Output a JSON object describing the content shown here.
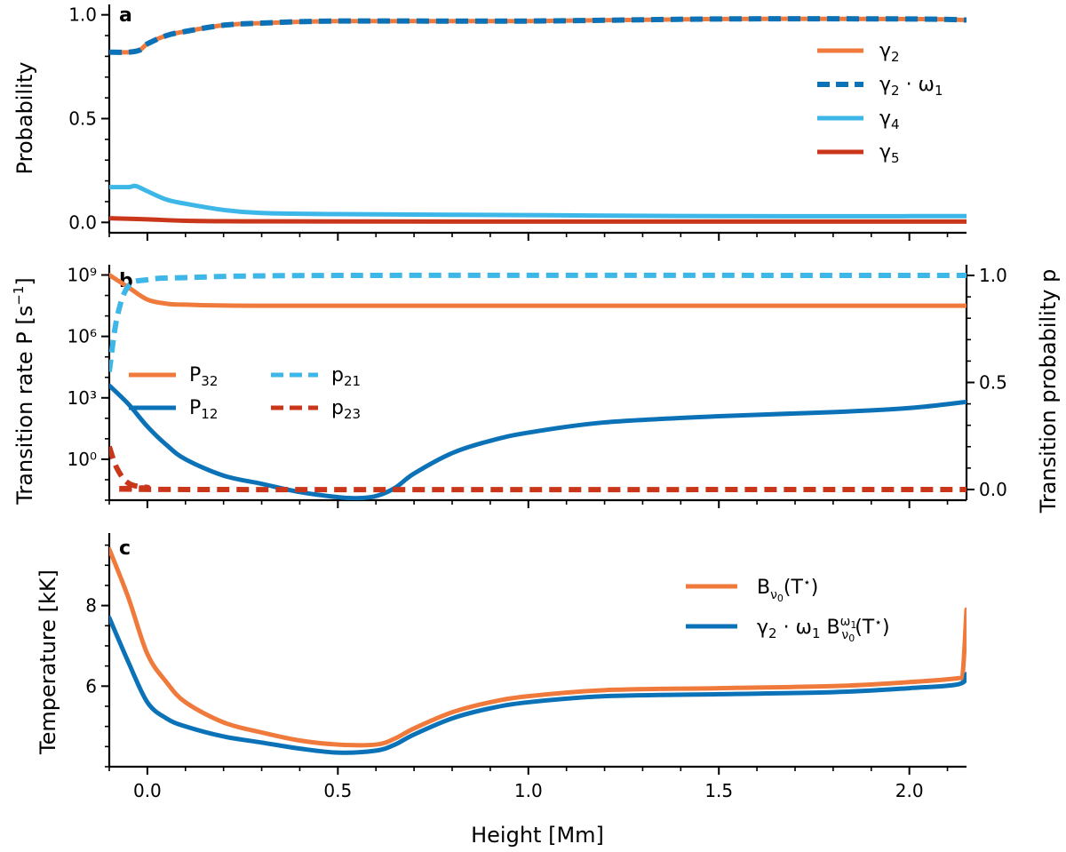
{
  "figure": {
    "xlabel": "Height [Mm]",
    "xlim": [
      -0.1,
      2.15
    ],
    "xticks": [
      0.0,
      0.5,
      1.0,
      1.5,
      2.0
    ],
    "xtick_labels": [
      "0.0",
      "0.5",
      "1.0",
      "1.5",
      "2.0"
    ]
  },
  "colors": {
    "orange": "#ef7a3c",
    "blue": "#0b72b8",
    "light_blue": "#3db6e8",
    "red": "#c9361a"
  },
  "chart_data": [
    {
      "type": "line",
      "panel": "a",
      "ylabel": "Probability",
      "ylim": [
        -0.05,
        1.05
      ],
      "yticks": [
        0.0,
        0.5,
        1.0
      ],
      "ytick_labels": [
        "0.0",
        "0.5",
        "1.0"
      ],
      "legend_position": "top-right",
      "series": [
        {
          "name": "γ2",
          "color": "#ef7a3c",
          "dash": false,
          "points": [
            [
              -0.1,
              0.82
            ],
            [
              -0.05,
              0.82
            ],
            [
              -0.02,
              0.83
            ],
            [
              0.0,
              0.86
            ],
            [
              0.05,
              0.9
            ],
            [
              0.1,
              0.92
            ],
            [
              0.2,
              0.95
            ],
            [
              0.3,
              0.96
            ],
            [
              0.5,
              0.97
            ],
            [
              1.0,
              0.97
            ],
            [
              1.5,
              0.98
            ],
            [
              2.0,
              0.98
            ],
            [
              2.15,
              0.975
            ]
          ]
        },
        {
          "name": "γ2 · ω1",
          "color": "#0b72b8",
          "dash": true,
          "points": [
            [
              -0.1,
              0.82
            ],
            [
              -0.05,
              0.82
            ],
            [
              -0.02,
              0.83
            ],
            [
              0.0,
              0.86
            ],
            [
              0.05,
              0.9
            ],
            [
              0.1,
              0.92
            ],
            [
              0.2,
              0.95
            ],
            [
              0.3,
              0.96
            ],
            [
              0.5,
              0.97
            ],
            [
              1.0,
              0.97
            ],
            [
              1.5,
              0.98
            ],
            [
              2.0,
              0.98
            ],
            [
              2.15,
              0.975
            ]
          ]
        },
        {
          "name": "γ4",
          "color": "#3db6e8",
          "dash": false,
          "points": [
            [
              -0.1,
              0.17
            ],
            [
              -0.05,
              0.17
            ],
            [
              -0.03,
              0.175
            ],
            [
              0.0,
              0.15
            ],
            [
              0.05,
              0.11
            ],
            [
              0.1,
              0.09
            ],
            [
              0.2,
              0.06
            ],
            [
              0.3,
              0.045
            ],
            [
              0.5,
              0.04
            ],
            [
              1.0,
              0.035
            ],
            [
              1.5,
              0.03
            ],
            [
              2.0,
              0.03
            ],
            [
              2.15,
              0.03
            ]
          ]
        },
        {
          "name": "γ5",
          "color": "#c9361a",
          "dash": false,
          "points": [
            [
              -0.1,
              0.02
            ],
            [
              0.0,
              0.015
            ],
            [
              0.1,
              0.008
            ],
            [
              0.3,
              0.005
            ],
            [
              1.0,
              0.004
            ],
            [
              2.15,
              0.004
            ]
          ]
        }
      ]
    },
    {
      "type": "line",
      "panel": "b",
      "ylabel": "Transition rate P [s⁻¹]",
      "y_scale": "log",
      "ylim_log10": [
        -2,
        9.5
      ],
      "yticks_log10": [
        0,
        3,
        6,
        9
      ],
      "ytick_labels": [
        "10⁰",
        "10³",
        "10⁶",
        "10⁹"
      ],
      "y2label": "Transition probability p",
      "y2lim": [
        -0.05,
        1.05
      ],
      "y2ticks": [
        0.0,
        0.5,
        1.0
      ],
      "y2tick_labels": [
        "0.0",
        "0.5",
        "1.0"
      ],
      "legend_position": "center-left",
      "series": [
        {
          "name": "P32",
          "color": "#ef7a3c",
          "dash": false,
          "axis": "left",
          "points": [
            [
              -0.1,
              9.0
            ],
            [
              -0.05,
              8.4
            ],
            [
              0.0,
              7.8
            ],
            [
              0.05,
              7.6
            ],
            [
              0.1,
              7.55
            ],
            [
              0.3,
              7.5
            ],
            [
              1.0,
              7.5
            ],
            [
              2.15,
              7.5
            ]
          ]
        },
        {
          "name": "P12",
          "color": "#0b72b8",
          "dash": false,
          "axis": "left",
          "points": [
            [
              -0.1,
              3.6
            ],
            [
              -0.05,
              2.7
            ],
            [
              0.0,
              1.6
            ],
            [
              0.05,
              0.7
            ],
            [
              0.1,
              0.0
            ],
            [
              0.2,
              -0.8
            ],
            [
              0.3,
              -1.2
            ],
            [
              0.4,
              -1.6
            ],
            [
              0.5,
              -1.85
            ],
            [
              0.55,
              -1.9
            ],
            [
              0.6,
              -1.8
            ],
            [
              0.65,
              -1.4
            ],
            [
              0.7,
              -0.7
            ],
            [
              0.8,
              0.3
            ],
            [
              0.9,
              0.9
            ],
            [
              1.0,
              1.3
            ],
            [
              1.2,
              1.8
            ],
            [
              1.5,
              2.1
            ],
            [
              1.8,
              2.3
            ],
            [
              2.0,
              2.5
            ],
            [
              2.15,
              2.8
            ]
          ]
        },
        {
          "name": "p21",
          "color": "#3db6e8",
          "dash": true,
          "axis": "right",
          "points": [
            [
              -0.1,
              0.55
            ],
            [
              -0.08,
              0.8
            ],
            [
              -0.05,
              0.95
            ],
            [
              0.0,
              0.98
            ],
            [
              0.1,
              0.99
            ],
            [
              0.5,
              1.0
            ],
            [
              2.15,
              1.0
            ]
          ]
        },
        {
          "name": "p23",
          "color": "#c9361a",
          "dash": true,
          "axis": "right",
          "points": [
            [
              -0.1,
              0.2
            ],
            [
              -0.08,
              0.1
            ],
            [
              -0.05,
              0.03
            ],
            [
              0.0,
              0.01
            ],
            [
              0.1,
              0.0
            ],
            [
              2.15,
              0.0
            ]
          ]
        }
      ]
    },
    {
      "type": "line",
      "panel": "c",
      "ylabel": "Temperature [kK]",
      "ylim": [
        4.0,
        9.8
      ],
      "yticks": [
        6,
        8
      ],
      "ytick_labels": [
        "6",
        "8"
      ],
      "legend_position": "top-right",
      "series": [
        {
          "name": "Bν0(T⋆)",
          "color": "#ef7a3c",
          "dash": false,
          "points": [
            [
              -0.1,
              9.4
            ],
            [
              -0.05,
              8.2
            ],
            [
              0.0,
              6.8
            ],
            [
              0.05,
              6.1
            ],
            [
              0.1,
              5.6
            ],
            [
              0.2,
              5.1
            ],
            [
              0.3,
              4.85
            ],
            [
              0.4,
              4.65
            ],
            [
              0.5,
              4.55
            ],
            [
              0.6,
              4.55
            ],
            [
              0.65,
              4.7
            ],
            [
              0.7,
              4.95
            ],
            [
              0.8,
              5.35
            ],
            [
              0.9,
              5.6
            ],
            [
              1.0,
              5.75
            ],
            [
              1.2,
              5.9
            ],
            [
              1.5,
              5.95
            ],
            [
              1.8,
              6.0
            ],
            [
              2.0,
              6.1
            ],
            [
              2.13,
              6.2
            ],
            [
              2.14,
              6.3
            ],
            [
              2.15,
              7.9
            ]
          ]
        },
        {
          "name": "γ2 · ω1 Bν0ω1(T⋆)",
          "color": "#0b72b8",
          "dash": false,
          "points": [
            [
              -0.1,
              7.7
            ],
            [
              -0.05,
              6.6
            ],
            [
              0.0,
              5.6
            ],
            [
              0.05,
              5.2
            ],
            [
              0.1,
              5.0
            ],
            [
              0.2,
              4.75
            ],
            [
              0.3,
              4.6
            ],
            [
              0.4,
              4.45
            ],
            [
              0.5,
              4.35
            ],
            [
              0.6,
              4.4
            ],
            [
              0.65,
              4.55
            ],
            [
              0.7,
              4.8
            ],
            [
              0.8,
              5.2
            ],
            [
              0.9,
              5.45
            ],
            [
              1.0,
              5.6
            ],
            [
              1.2,
              5.75
            ],
            [
              1.5,
              5.8
            ],
            [
              1.8,
              5.85
            ],
            [
              2.0,
              5.95
            ],
            [
              2.13,
              6.05
            ],
            [
              2.15,
              6.3
            ]
          ]
        }
      ]
    }
  ],
  "legend_labels": {
    "a": [
      {
        "base": "γ",
        "sub": "2"
      },
      {
        "base": "γ",
        "sub": "2",
        "rest": " · ω",
        "sub2": "1"
      },
      {
        "base": "γ",
        "sub": "4"
      },
      {
        "base": "γ",
        "sub": "5"
      }
    ],
    "b": [
      {
        "base": "P",
        "sub": "32"
      },
      {
        "base": "P",
        "sub": "12"
      },
      {
        "base": "p",
        "sub": "21"
      },
      {
        "base": "p",
        "sub": "23"
      }
    ],
    "c": [
      {
        "text": "Bν₀(T⋆)"
      },
      {
        "text": "γ₂ · ω₁ Bν₀ω₁(T⋆)"
      }
    ]
  }
}
